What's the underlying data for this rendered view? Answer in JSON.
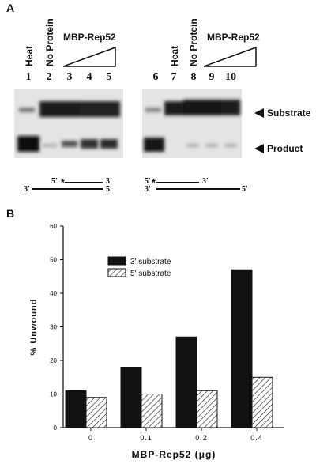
{
  "panel_a": {
    "label": "A",
    "lanes": [
      "1",
      "2",
      "3",
      "4",
      "5",
      "6",
      "7",
      "8",
      "9",
      "10"
    ],
    "heat_label": "Heat",
    "no_protein_label": "No Protein",
    "protein_label": "MBP-Rep52",
    "substrate_label": "Substrate",
    "product_label": "Product",
    "left_duplex": {
      "top_5": "5'",
      "top_3": "3'",
      "bottom_3": "3'",
      "bottom_5": "5'"
    },
    "right_duplex": {
      "top_5": "5'",
      "top_3": "3'",
      "bottom_3": "3'",
      "bottom_5": "5'"
    }
  },
  "panel_b": {
    "label": "B"
  },
  "chart_data": {
    "type": "bar",
    "categories": [
      "0",
      "0.1",
      "0.2",
      "0.4"
    ],
    "series": [
      {
        "name": "3' substrate",
        "values": [
          11,
          18,
          27,
          47
        ],
        "fill": "solid-black"
      },
      {
        "name": "5' substrate",
        "values": [
          9,
          10,
          11,
          15
        ],
        "fill": "hatched"
      }
    ],
    "xlabel": "MBP-Rep52 (μg)",
    "ylabel": "% Unwound",
    "ylim": [
      0,
      60
    ],
    "yticks": [
      0,
      10,
      20,
      30,
      40,
      50,
      60
    ],
    "legend_position": "top-left-inside"
  }
}
